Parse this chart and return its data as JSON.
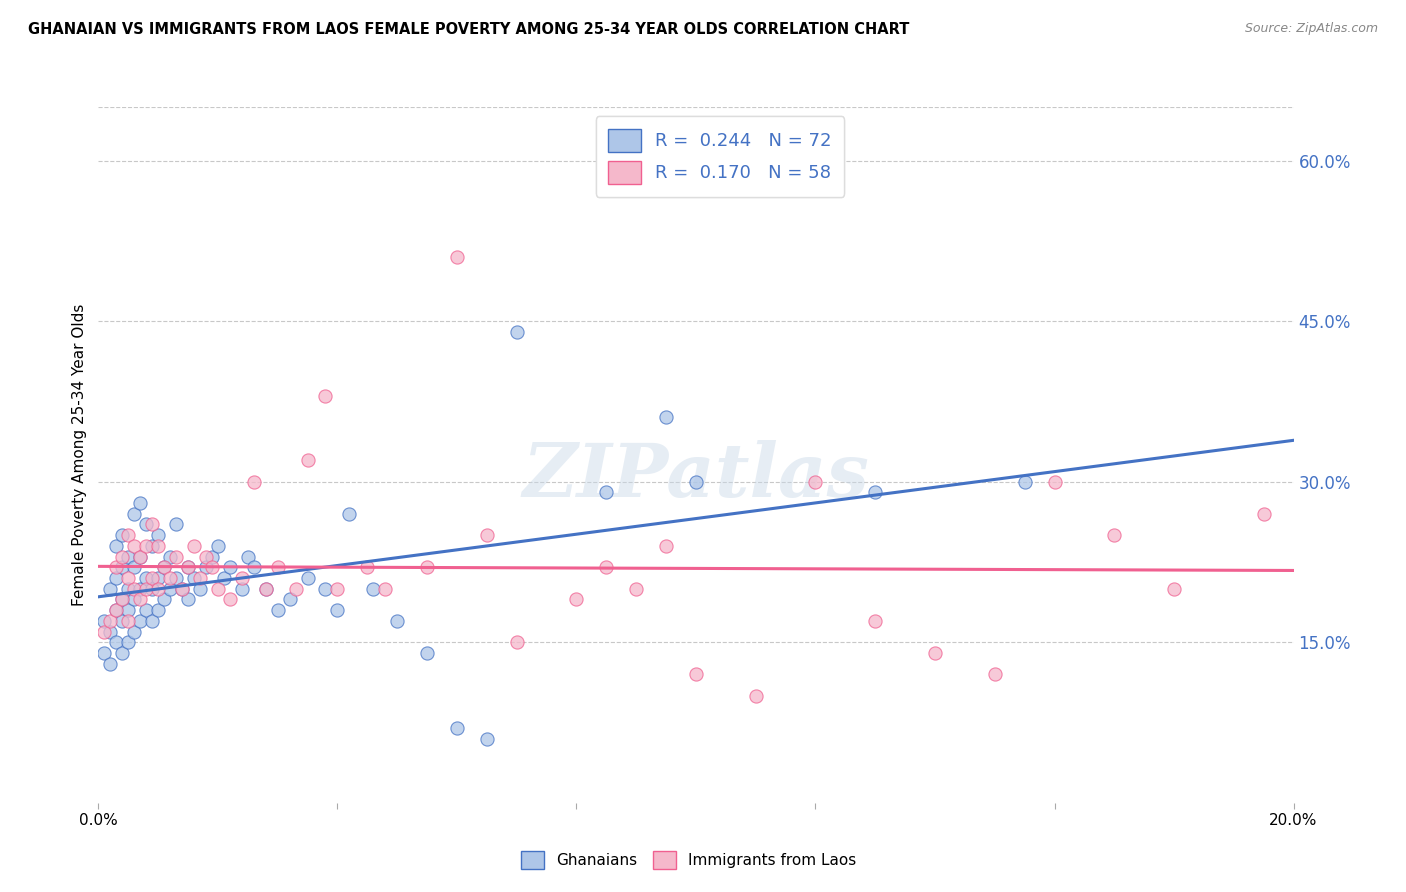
{
  "title": "GHANAIAN VS IMMIGRANTS FROM LAOS FEMALE POVERTY AMONG 25-34 YEAR OLDS CORRELATION CHART",
  "source": "Source: ZipAtlas.com",
  "ylabel": "Female Poverty Among 25-34 Year Olds",
  "xlim": [
    0.0,
    0.2
  ],
  "ylim": [
    0.0,
    0.65
  ],
  "xticks": [
    0.0,
    0.04,
    0.08,
    0.12,
    0.16,
    0.2
  ],
  "xtick_labels": [
    "0.0%",
    "",
    "",
    "",
    "",
    "20.0%"
  ],
  "yticks_right": [
    0.15,
    0.3,
    0.45,
    0.6
  ],
  "ytick_labels_right": [
    "15.0%",
    "30.0%",
    "45.0%",
    "60.0%"
  ],
  "background_color": "#ffffff",
  "grid_color": "#c8c8c8",
  "watermark": "ZIPatlas",
  "legend_R1": "0.244",
  "legend_N1": "72",
  "legend_R2": "0.170",
  "legend_N2": "58",
  "ghanaian_color": "#aec6e8",
  "laos_color": "#f5b8cb",
  "trendline_ghanaian_color": "#4472c4",
  "trendline_laos_color": "#f06090",
  "ghanaian_x": [
    0.001,
    0.001,
    0.002,
    0.002,
    0.002,
    0.003,
    0.003,
    0.003,
    0.003,
    0.004,
    0.004,
    0.004,
    0.004,
    0.004,
    0.005,
    0.005,
    0.005,
    0.005,
    0.006,
    0.006,
    0.006,
    0.006,
    0.007,
    0.007,
    0.007,
    0.007,
    0.008,
    0.008,
    0.008,
    0.009,
    0.009,
    0.009,
    0.01,
    0.01,
    0.01,
    0.011,
    0.011,
    0.012,
    0.012,
    0.013,
    0.013,
    0.014,
    0.015,
    0.015,
    0.016,
    0.017,
    0.018,
    0.019,
    0.02,
    0.021,
    0.022,
    0.024,
    0.025,
    0.026,
    0.028,
    0.03,
    0.032,
    0.035,
    0.038,
    0.04,
    0.042,
    0.046,
    0.05,
    0.055,
    0.06,
    0.065,
    0.07,
    0.085,
    0.095,
    0.1,
    0.13,
    0.155
  ],
  "ghanaian_y": [
    0.14,
    0.17,
    0.13,
    0.16,
    0.2,
    0.15,
    0.18,
    0.21,
    0.24,
    0.14,
    0.17,
    0.19,
    0.22,
    0.25,
    0.15,
    0.18,
    0.2,
    0.23,
    0.16,
    0.19,
    0.22,
    0.27,
    0.17,
    0.2,
    0.23,
    0.28,
    0.18,
    0.21,
    0.26,
    0.17,
    0.2,
    0.24,
    0.18,
    0.21,
    0.25,
    0.19,
    0.22,
    0.2,
    0.23,
    0.21,
    0.26,
    0.2,
    0.19,
    0.22,
    0.21,
    0.2,
    0.22,
    0.23,
    0.24,
    0.21,
    0.22,
    0.2,
    0.23,
    0.22,
    0.2,
    0.18,
    0.19,
    0.21,
    0.2,
    0.18,
    0.27,
    0.2,
    0.17,
    0.14,
    0.07,
    0.06,
    0.44,
    0.29,
    0.36,
    0.3,
    0.29,
    0.3
  ],
  "laos_x": [
    0.001,
    0.002,
    0.003,
    0.003,
    0.004,
    0.004,
    0.005,
    0.005,
    0.005,
    0.006,
    0.006,
    0.007,
    0.007,
    0.008,
    0.008,
    0.009,
    0.009,
    0.01,
    0.01,
    0.011,
    0.012,
    0.013,
    0.014,
    0.015,
    0.016,
    0.017,
    0.018,
    0.019,
    0.02,
    0.022,
    0.024,
    0.026,
    0.028,
    0.03,
    0.033,
    0.035,
    0.038,
    0.04,
    0.045,
    0.048,
    0.055,
    0.06,
    0.065,
    0.07,
    0.08,
    0.085,
    0.09,
    0.095,
    0.1,
    0.11,
    0.12,
    0.13,
    0.14,
    0.15,
    0.16,
    0.17,
    0.18,
    0.195
  ],
  "laos_y": [
    0.16,
    0.17,
    0.18,
    0.22,
    0.19,
    0.23,
    0.17,
    0.21,
    0.25,
    0.2,
    0.24,
    0.19,
    0.23,
    0.2,
    0.24,
    0.21,
    0.26,
    0.2,
    0.24,
    0.22,
    0.21,
    0.23,
    0.2,
    0.22,
    0.24,
    0.21,
    0.23,
    0.22,
    0.2,
    0.19,
    0.21,
    0.3,
    0.2,
    0.22,
    0.2,
    0.32,
    0.38,
    0.2,
    0.22,
    0.2,
    0.22,
    0.51,
    0.25,
    0.15,
    0.19,
    0.22,
    0.2,
    0.24,
    0.12,
    0.1,
    0.3,
    0.17,
    0.14,
    0.12,
    0.3,
    0.25,
    0.2,
    0.27
  ]
}
